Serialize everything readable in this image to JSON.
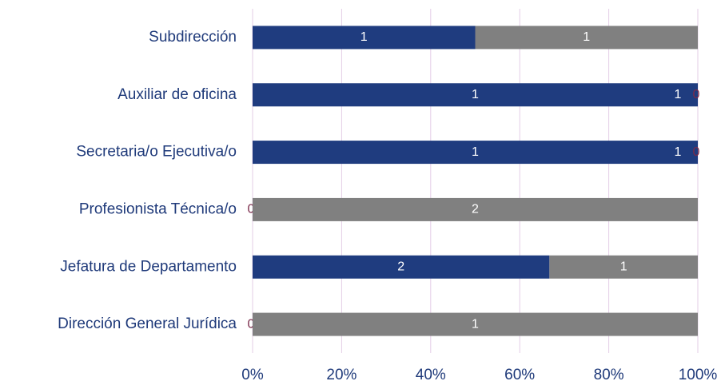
{
  "chart_data": {
    "type": "stacked_bar_100",
    "categories": [
      "Subdirección",
      "Auxiliar de oficina",
      "Secretaria/o Ejecutiva/o",
      "Profesionista Técnica/o",
      "Jefatura de Departamento",
      "Dirección General Jurídica"
    ],
    "series": [
      {
        "color": "#1f3c7f",
        "values": [
          1,
          1,
          1,
          0,
          2,
          0
        ]
      },
      {
        "color": "#808080",
        "values": [
          1,
          0,
          0,
          2,
          1,
          1
        ]
      }
    ],
    "annotations": [
      "1",
      "1"
    ],
    "xlim": [
      0,
      100
    ],
    "xticks": [
      {
        "value": 0,
        "label": "0%"
      },
      {
        "value": 20,
        "label": "20%"
      },
      {
        "value": 40,
        "label": "40%"
      },
      {
        "value": 60,
        "label": "60%"
      },
      {
        "value": 80,
        "label": "80%"
      },
      {
        "value": 100,
        "label": "100%"
      }
    ],
    "grid": true
  }
}
